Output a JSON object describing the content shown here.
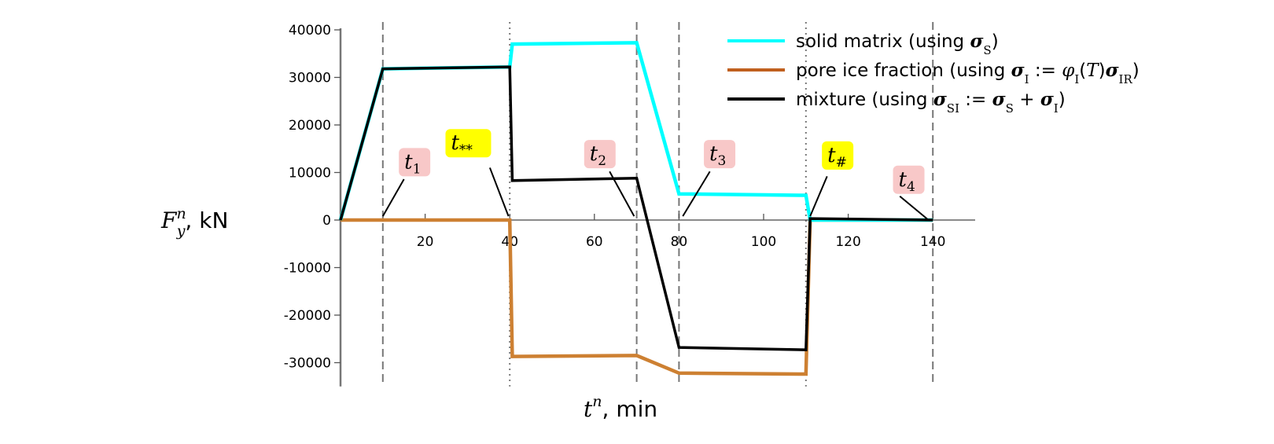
{
  "chart_data": {
    "type": "line",
    "xlabel": {
      "base": "t",
      "sup": "n",
      "unit": ", min"
    },
    "ylabel": {
      "base": "F",
      "sub": "y",
      "sup": "n",
      "unit": ", kN"
    },
    "xlim": [
      0,
      150
    ],
    "ylim": [
      -35000,
      40000
    ],
    "xticks": [
      20,
      40,
      60,
      80,
      100,
      120,
      140
    ],
    "yticks": [
      -30000,
      -20000,
      -10000,
      0,
      10000,
      20000,
      30000,
      40000
    ],
    "grid": false,
    "legend_position": "top-right",
    "vlines": [
      {
        "x": 10,
        "style": "dashed"
      },
      {
        "x": 40,
        "style": "dotted"
      },
      {
        "x": 70,
        "style": "dashed"
      },
      {
        "x": 80,
        "style": "dashed"
      },
      {
        "x": 110,
        "style": "dotted"
      },
      {
        "x": 140,
        "style": "dashed"
      }
    ],
    "series": [
      {
        "name": "solid matrix (using σS)",
        "legend_parts": [
          [
            "t",
            "solid matrix (using "
          ],
          [
            "b",
            "σ"
          ],
          [
            "sub",
            "S"
          ],
          [
            "t",
            ")"
          ]
        ],
        "color": "#00ffff",
        "x": [
          0,
          10,
          40,
          40.6,
          70,
          80,
          110,
          111,
          140
        ],
        "y": [
          0,
          31800,
          32200,
          37000,
          37300,
          5500,
          5200,
          0,
          0
        ]
      },
      {
        "name": "pore ice fraction (using σI := φI(T)σIR)",
        "legend_parts": [
          [
            "t",
            "pore ice fraction (using "
          ],
          [
            "b",
            "σ"
          ],
          [
            "sub",
            "I"
          ],
          [
            "t",
            " := "
          ],
          [
            "i",
            "φ"
          ],
          [
            "sub",
            "I"
          ],
          [
            "t",
            "("
          ],
          [
            "i",
            "T"
          ],
          [
            "t",
            ")"
          ],
          [
            "b",
            "σ"
          ],
          [
            "sub",
            "IR"
          ],
          [
            "t",
            ")"
          ]
        ],
        "color": "#cd8032",
        "x": [
          0,
          40,
          40.6,
          70,
          80,
          110,
          111,
          140
        ],
        "y": [
          0,
          0,
          -28700,
          -28500,
          -32200,
          -32400,
          0,
          0
        ]
      },
      {
        "name": "mixture (using σSI := σS + σI)",
        "legend_parts": [
          [
            "t",
            "mixture (using "
          ],
          [
            "b",
            "σ"
          ],
          [
            "sub",
            "SI"
          ],
          [
            "t",
            " := "
          ],
          [
            "b",
            "σ"
          ],
          [
            "sub",
            "S"
          ],
          [
            "t",
            " + "
          ],
          [
            "b",
            "σ"
          ],
          [
            "sub",
            "I"
          ],
          [
            "t",
            ")"
          ]
        ],
        "color": "#000000",
        "x": [
          0,
          10,
          40,
          40.6,
          70,
          80,
          110,
          111,
          140
        ],
        "y": [
          0,
          31800,
          32200,
          8300,
          8800,
          -26800,
          -27300,
          300,
          0
        ]
      }
    ],
    "annotations": [
      {
        "base": "t",
        "sub": "1",
        "bg": "#f8c8c8",
        "label_at": [
          17.5,
          12000
        ],
        "line_from": [
          15,
          8600
        ],
        "line_to": [
          10,
          800
        ]
      },
      {
        "base": "t",
        "sub": "**",
        "bg": "#ffff00",
        "label_at": [
          30.2,
          16000
        ],
        "line_from": [
          35.3,
          11000
        ],
        "line_to": [
          39.7,
          800
        ]
      },
      {
        "base": "t",
        "sub": "2",
        "bg": "#f8c8c8",
        "label_at": [
          61.3,
          13700
        ],
        "line_from": [
          63.6,
          10200
        ],
        "line_to": [
          69.4,
          800
        ]
      },
      {
        "base": "t",
        "sub": "3",
        "bg": "#f8c8c8",
        "label_at": [
          89.6,
          13700
        ],
        "line_from": [
          87.3,
          10200
        ],
        "line_to": [
          80.9,
          800
        ]
      },
      {
        "base": "t",
        "sub": "#",
        "bg": "#ffff00",
        "label_at": [
          117.5,
          13400
        ],
        "line_from": [
          115,
          9200
        ],
        "line_to": [
          111,
          800
        ]
      },
      {
        "base": "t",
        "sub": "4",
        "bg": "#f8c8c8",
        "label_at": [
          134.3,
          8300
        ],
        "line_from": [
          132.2,
          5000
        ],
        "line_to": [
          138.7,
          200
        ]
      }
    ]
  }
}
